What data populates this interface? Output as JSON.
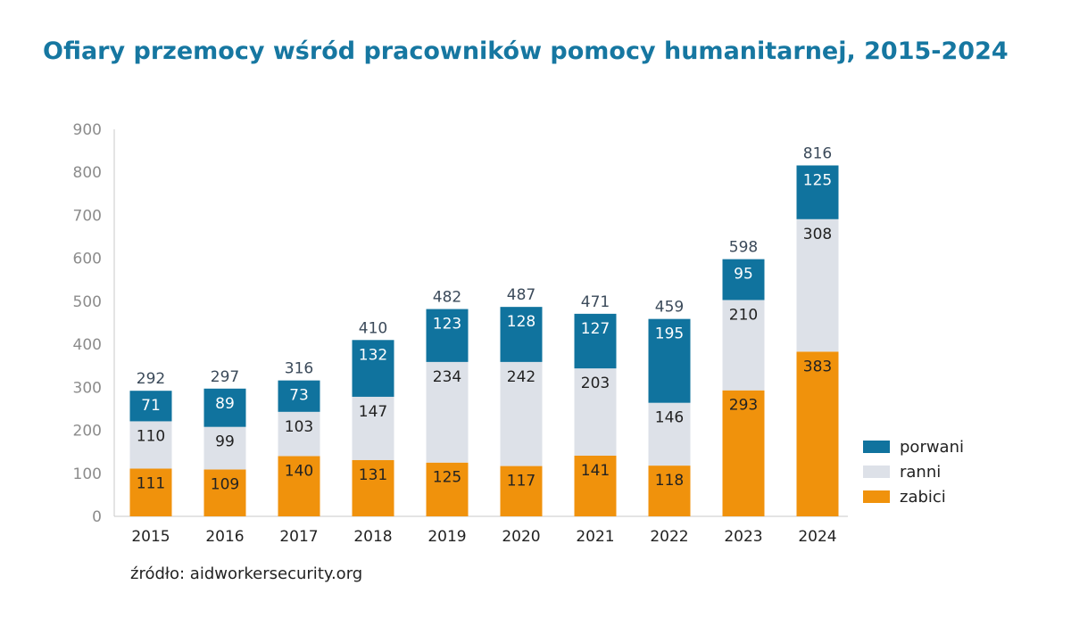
{
  "chart_data": {
    "type": "bar",
    "stacked": true,
    "title": "Ofiary przemocy wśród pracowników pomocy humanitarnej, 2015-2024",
    "categories": [
      "2015",
      "2016",
      "2017",
      "2018",
      "2019",
      "2020",
      "2021",
      "2022",
      "2023",
      "2024"
    ],
    "series": [
      {
        "name": "zabici",
        "color": "#f0920c",
        "values": [
          111,
          109,
          140,
          131,
          125,
          117,
          141,
          118,
          293,
          383
        ]
      },
      {
        "name": "ranni",
        "color": "#dde1e8",
        "values": [
          110,
          99,
          103,
          147,
          234,
          242,
          203,
          146,
          210,
          308
        ]
      },
      {
        "name": "porwani",
        "color": "#10739e",
        "values": [
          71,
          89,
          73,
          132,
          123,
          128,
          127,
          195,
          95,
          125
        ]
      }
    ],
    "totals": [
      292,
      297,
      316,
      410,
      482,
      487,
      471,
      459,
      598,
      816
    ],
    "ylim": [
      0,
      900
    ],
    "yticks": [
      0,
      100,
      200,
      300,
      400,
      500,
      600,
      700,
      800,
      900
    ],
    "legend": [
      "porwani",
      "ranni",
      "zabici"
    ],
    "legend_position": "right",
    "grid": false
  },
  "source": "źródło: aidworkersecurity.org"
}
